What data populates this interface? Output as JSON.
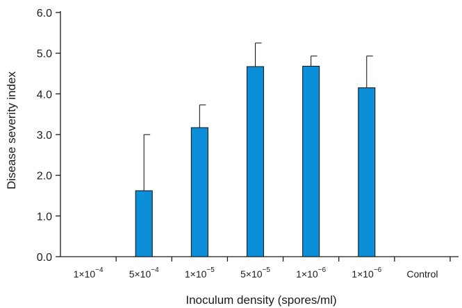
{
  "chart_data": {
    "type": "bar",
    "title": "",
    "xlabel": "Inoculum density (spores/ml)",
    "ylabel": "Disease severity index",
    "ylim": [
      0,
      6
    ],
    "y_ticks": [
      "0.0",
      "1.0",
      "2.0",
      "3.0",
      "4.0",
      "5.0",
      "6.0"
    ],
    "categories": [
      {
        "base": "1×10",
        "exp": "−4",
        "label": "1×10^−4"
      },
      {
        "base": "5×10",
        "exp": "−4",
        "label": "5×10^−4"
      },
      {
        "base": "1×10",
        "exp": "−5",
        "label": "1×10^−5"
      },
      {
        "base": "5×10",
        "exp": "−5",
        "label": "5×10^−5"
      },
      {
        "base": "1×10",
        "exp": "−6",
        "label": "1×10^−6"
      },
      {
        "base": "1×10",
        "exp": "−6",
        "label": "1×10^−6"
      },
      {
        "base": "Control",
        "exp": "",
        "label": "Control"
      }
    ],
    "values": [
      0,
      1.62,
      3.17,
      4.67,
      4.68,
      4.15,
      0
    ],
    "error_upper": [
      0,
      3.0,
      3.73,
      5.25,
      4.93,
      4.93,
      0
    ],
    "bar_color": "#0a8fd8",
    "grid": false,
    "legend": "none"
  }
}
